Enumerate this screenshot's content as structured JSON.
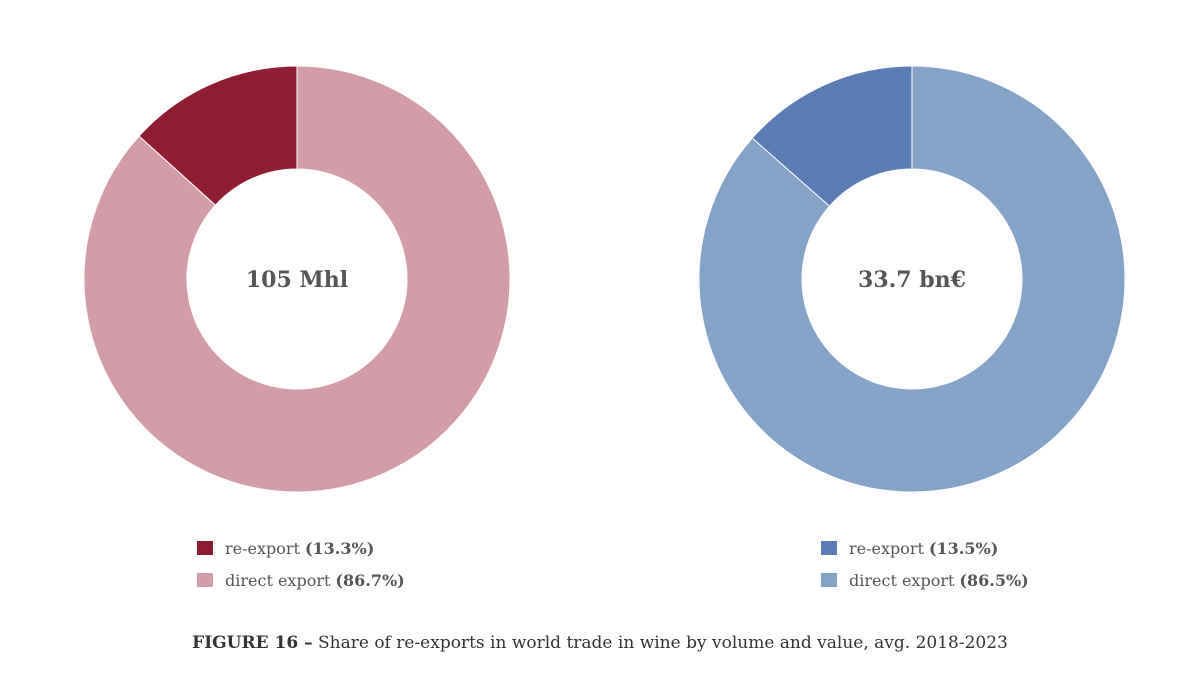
{
  "chart_data": [
    {
      "type": "pie",
      "donut": true,
      "center_label": "105 Mhl",
      "slices": [
        {
          "label": "re-export",
          "pct_label": "(13.3%)",
          "value": 13.3,
          "color": "#8e1c33"
        },
        {
          "label": "direct export",
          "pct_label": "(86.7%)",
          "value": 86.7,
          "color": "#d29da8"
        }
      ]
    },
    {
      "type": "pie",
      "donut": true,
      "center_label": "33.7 bn€",
      "slices": [
        {
          "label": "re-export",
          "pct_label": "(13.5%)",
          "value": 13.5,
          "color": "#5b7db4"
        },
        {
          "label": "direct export",
          "pct_label": "(86.5%)",
          "value": 86.5,
          "color": "#85a2c7"
        }
      ]
    }
  ],
  "caption": {
    "figure_label": "FIGURE 16 –",
    "text": "Share of re-exports in world trade in wine by volume and value, avg. 2018-2023"
  }
}
